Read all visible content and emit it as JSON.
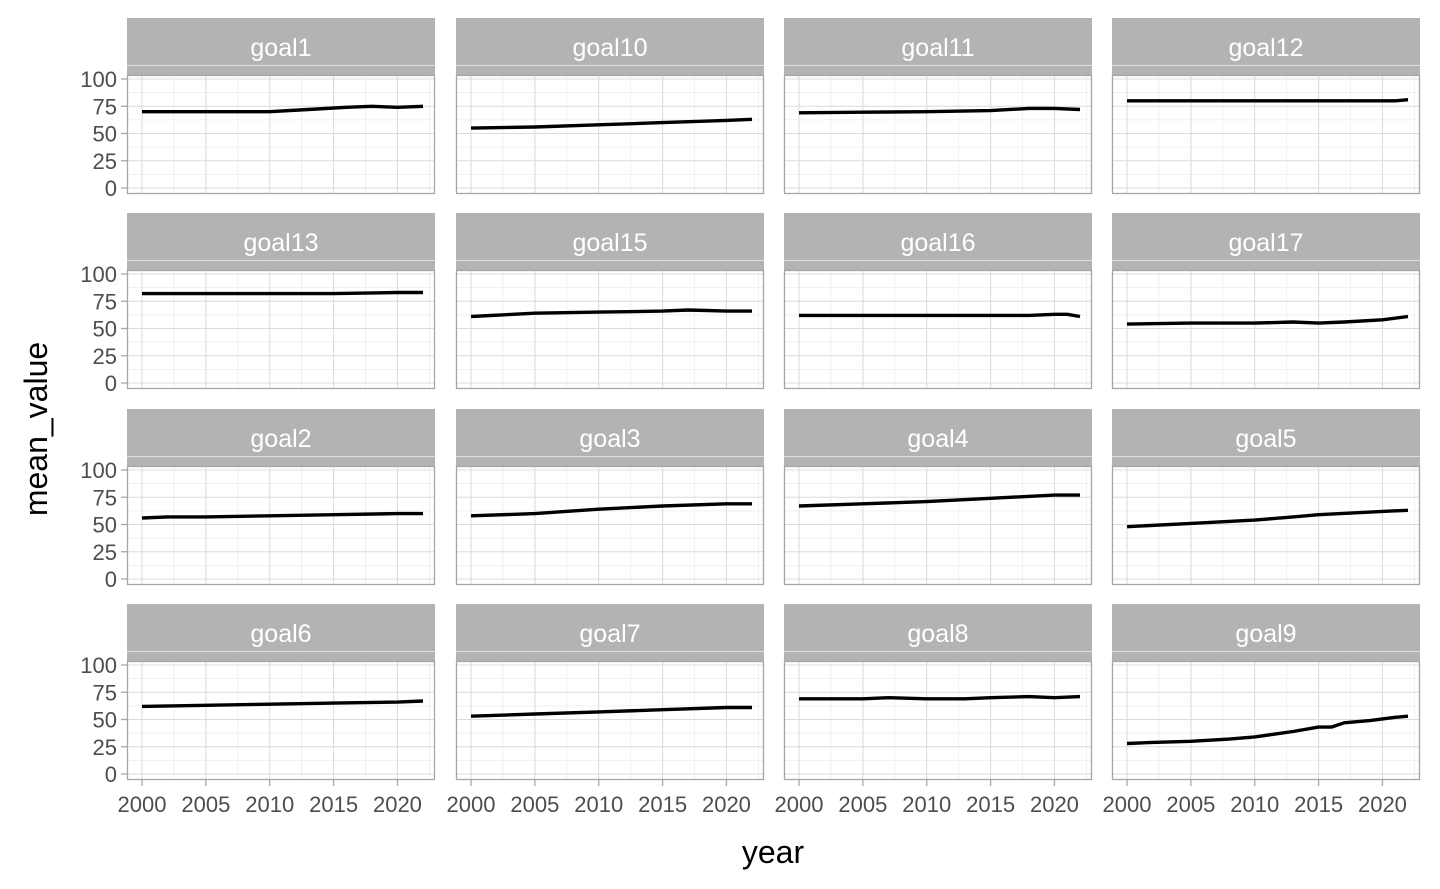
{
  "chart_data": {
    "type": "line",
    "layout": "facet-grid",
    "xlabel": "year",
    "ylabel": "mean_value",
    "xlim": [
      1999,
      2023
    ],
    "ylim": [
      0,
      100
    ],
    "x_ticks": [
      2000,
      2005,
      2010,
      2015,
      2020
    ],
    "y_ticks": [
      0,
      25,
      50,
      75,
      100
    ],
    "grid": true,
    "panels": [
      {
        "name": "goal1",
        "x": [
          2000,
          2010,
          2013,
          2016,
          2018,
          2020,
          2022
        ],
        "values": [
          70,
          70,
          72,
          74,
          75,
          74,
          75
        ]
      },
      {
        "name": "goal10",
        "x": [
          2000,
          2005,
          2010,
          2015,
          2020,
          2022
        ],
        "values": [
          55,
          56,
          58,
          60,
          62,
          63
        ]
      },
      {
        "name": "goal11",
        "x": [
          2000,
          2005,
          2010,
          2015,
          2018,
          2020,
          2022
        ],
        "values": [
          69,
          69.5,
          70,
          71,
          73,
          73,
          72
        ]
      },
      {
        "name": "goal12",
        "x": [
          2000,
          2010,
          2020,
          2021,
          2022
        ],
        "values": [
          80,
          80,
          80,
          80,
          81
        ]
      },
      {
        "name": "goal13",
        "x": [
          2000,
          2010,
          2015,
          2020,
          2022
        ],
        "values": [
          82,
          82,
          82,
          83,
          83
        ]
      },
      {
        "name": "goal15",
        "x": [
          2000,
          2005,
          2010,
          2015,
          2017,
          2020,
          2022
        ],
        "values": [
          61,
          64,
          65,
          66,
          67,
          66,
          66
        ]
      },
      {
        "name": "goal16",
        "x": [
          2000,
          2010,
          2015,
          2018,
          2020,
          2021,
          2022
        ],
        "values": [
          62,
          62,
          62,
          62,
          63,
          63,
          61
        ]
      },
      {
        "name": "goal17",
        "x": [
          2000,
          2005,
          2010,
          2013,
          2015,
          2017,
          2020,
          2022
        ],
        "values": [
          54,
          55,
          55,
          56,
          55,
          56,
          58,
          61
        ]
      },
      {
        "name": "goal2",
        "x": [
          2000,
          2002,
          2005,
          2010,
          2015,
          2020,
          2022
        ],
        "values": [
          56,
          57,
          57,
          58,
          59,
          60,
          60
        ]
      },
      {
        "name": "goal3",
        "x": [
          2000,
          2005,
          2010,
          2015,
          2020,
          2022
        ],
        "values": [
          58,
          60,
          64,
          67,
          69,
          69
        ]
      },
      {
        "name": "goal4",
        "x": [
          2000,
          2005,
          2010,
          2015,
          2020,
          2022
        ],
        "values": [
          67,
          69,
          71,
          74,
          77,
          77
        ]
      },
      {
        "name": "goal5",
        "x": [
          2000,
          2005,
          2010,
          2013,
          2015,
          2020,
          2022
        ],
        "values": [
          48,
          51,
          54,
          57,
          59,
          62,
          63
        ]
      },
      {
        "name": "goal6",
        "x": [
          2000,
          2005,
          2010,
          2015,
          2020,
          2022
        ],
        "values": [
          62,
          63,
          64,
          65,
          66,
          67
        ]
      },
      {
        "name": "goal7",
        "x": [
          2000,
          2005,
          2010,
          2015,
          2020,
          2022
        ],
        "values": [
          53,
          55,
          57,
          59,
          61,
          61
        ]
      },
      {
        "name": "goal8",
        "x": [
          2000,
          2005,
          2007,
          2010,
          2013,
          2015,
          2018,
          2020,
          2022
        ],
        "values": [
          69,
          69,
          70,
          69,
          69,
          70,
          71,
          70,
          71
        ]
      },
      {
        "name": "goal9",
        "x": [
          2000,
          2002,
          2005,
          2008,
          2010,
          2013,
          2015,
          2016,
          2017,
          2019,
          2021,
          2022
        ],
        "values": [
          28,
          29,
          30,
          32,
          34,
          39,
          43,
          43,
          47,
          49,
          52,
          53
        ]
      }
    ]
  }
}
